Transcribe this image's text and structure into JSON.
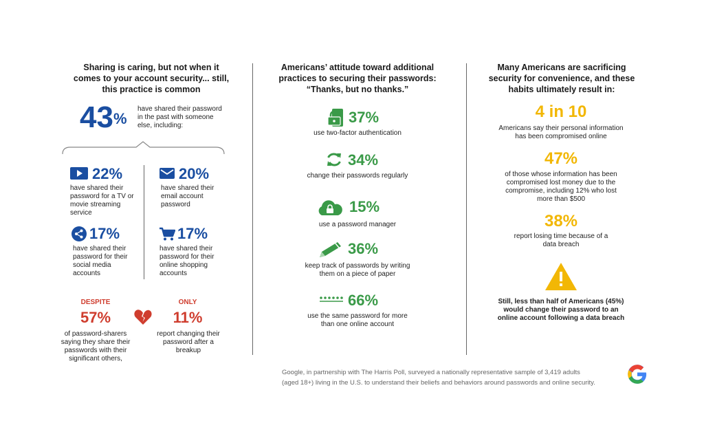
{
  "left": {
    "title": "Sharing is caring, but not when it comes to your account security... still, this practice is common",
    "main_pct": "43",
    "pct_sign": "%",
    "main_text": "have shared their password in the past with someone else, including:",
    "items": [
      {
        "pct": "22%",
        "text": "have shared their password for a TV or movie streaming service",
        "icon": "video-play-icon"
      },
      {
        "pct": "20%",
        "text": "have shared their email account password",
        "icon": "envelope-icon"
      },
      {
        "pct": "17%",
        "text": "have shared their password for their social media accounts",
        "icon": "share-icon"
      },
      {
        "pct": "17%",
        "text": "have shared their password for their online shopping accounts",
        "icon": "shopping-cart-icon"
      }
    ],
    "despite_label": "DESPITE",
    "despite_pct": "57%",
    "despite_text": "of password-sharers saying they share their passwords with their significant others,",
    "only_label": "ONLY",
    "only_pct": "11%",
    "only_text": "report changing their password after a breakup"
  },
  "middle": {
    "title": "Americans’ attitude toward additional practices to securing their passwords: “Thanks, but no thanks.”",
    "items": [
      {
        "pct": "37%",
        "text": "use two-factor authentication",
        "icon": "lock-phone-icon"
      },
      {
        "pct": "34%",
        "text": "change their passwords regularly",
        "icon": "refresh-icon"
      },
      {
        "pct": "15%",
        "text": "use a password manager",
        "icon": "cloud-lock-icon"
      },
      {
        "pct": "36%",
        "text": "keep track of passwords by writing them on a piece of paper",
        "icon": "pencil-icon"
      },
      {
        "pct": "66%",
        "text": "use the same password for more than one online account",
        "icon": "password-dots-icon"
      }
    ]
  },
  "right": {
    "title": "Many Americans are sacrificing security for convenience, and these habits ultimately result in:",
    "stat1": "4 in 10",
    "text1": "Americans say their personal information has been compromised online",
    "stat2": "47%",
    "text2": "of those whose information has been compromised lost money due to the compromise, including 12% who lost more than $500",
    "stat3": "38%",
    "text3": "report losing time because of a data breach",
    "warning_text": "Still, less than half of Americans (45%) would change their password to an online account following a data breach"
  },
  "footer": {
    "line1": "Google, in partnership with The Harris Poll, surveyed a nationally representative sample of 3,419 adults",
    "line2": "(aged 18+) living in the U.S. to understand their beliefs and behaviors around passwords and online security."
  },
  "colors": {
    "blue": "#1a4ea1",
    "red": "#cf3d2e",
    "green": "#3a9a48",
    "yellow": "#f2b705"
  }
}
